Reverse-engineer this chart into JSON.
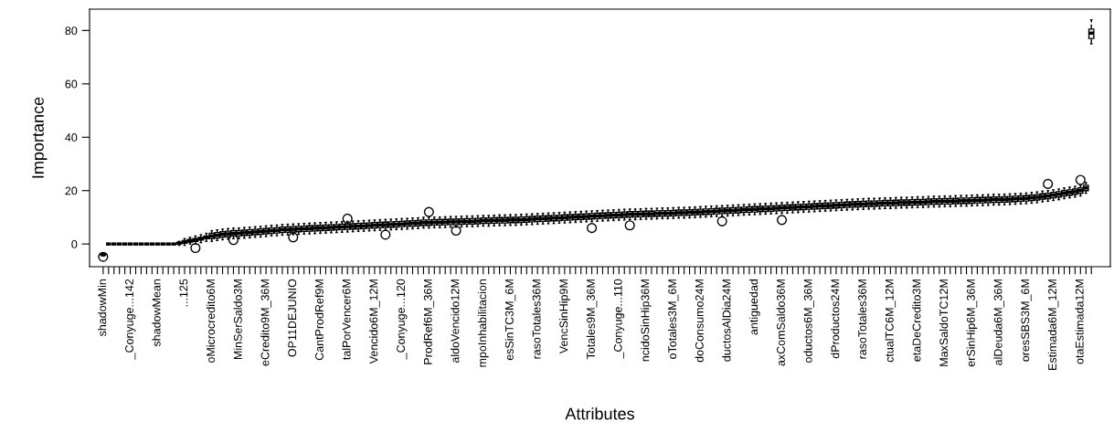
{
  "chart_data": {
    "type": "box",
    "xlabel": "Attributes",
    "ylabel": "Importance",
    "ylim": [
      -8.5,
      88
    ],
    "yticks": [
      0,
      20,
      40,
      60,
      80
    ],
    "grid": false,
    "legend": false,
    "categories": [
      "shadowMin",
      null,
      null,
      null,
      null,
      "_Conyuge...142",
      null,
      null,
      null,
      null,
      "shadowMean",
      null,
      null,
      null,
      null,
      "...125",
      null,
      null,
      null,
      null,
      "oMicrocredito6M",
      null,
      null,
      null,
      null,
      "MinSerSaldo3M",
      null,
      null,
      null,
      null,
      "eCredito9M_36M",
      null,
      null,
      null,
      null,
      "OP11DEJUNIO",
      null,
      null,
      null,
      null,
      "CantProdRef9M",
      null,
      null,
      null,
      null,
      "talPorVencer6M",
      null,
      null,
      null,
      null,
      "Vencido6M_12M",
      null,
      null,
      null,
      null,
      "_Conyuge...120",
      null,
      null,
      null,
      null,
      "ProdRef6M_36M",
      null,
      null,
      null,
      null,
      "aldoVencido12M",
      null,
      null,
      null,
      null,
      "mpoInhabilitacion",
      null,
      null,
      null,
      null,
      "esSinTC3M_6M",
      null,
      null,
      null,
      null,
      "rasoTotales36M",
      null,
      null,
      null,
      null,
      "VencSinHip9M",
      null,
      null,
      null,
      null,
      "Totales9M_36M",
      null,
      null,
      null,
      null,
      "_Conyuge...110",
      null,
      null,
      null,
      null,
      "ncidoSinHip36M",
      null,
      null,
      null,
      null,
      "oTotales3M_6M",
      null,
      null,
      null,
      null,
      "doConsumo24M",
      null,
      null,
      null,
      null,
      "ductosAlDia24M",
      null,
      null,
      null,
      null,
      "antiguedad",
      null,
      null,
      null,
      null,
      "axComSaldo36M",
      null,
      null,
      null,
      null,
      "oductos6M_36M",
      null,
      null,
      null,
      null,
      "dProductos24M",
      null,
      null,
      null,
      null,
      "rasoTotales36M",
      null,
      null,
      null,
      null,
      "ctualTC6M_12M",
      null,
      null,
      null,
      null,
      "etaDeCredito3M",
      null,
      null,
      null,
      null,
      "MaxSaldoTC12M",
      null,
      null,
      null,
      null,
      "erSinHip6M_36M",
      null,
      null,
      null,
      null,
      "alDeuda6M_36M",
      null,
      null,
      null,
      null,
      "oresSBS3M_6M",
      null,
      null,
      null,
      null,
      "Estimada6M_12M",
      null,
      null,
      null,
      null,
      "otaEstimada12M",
      null,
      null
    ],
    "boxes": [
      {
        "low": -4.5,
        "q1": -4.2,
        "median": -4,
        "q3": -3.8,
        "high": -3.5,
        "outliers": [
          -4.8
        ]
      },
      {
        "low": 0,
        "q1": 0,
        "median": 0,
        "q3": 0,
        "high": 0
      },
      {
        "low": 0,
        "q1": 0,
        "median": 0,
        "q3": 0,
        "high": 0
      },
      {
        "low": 0,
        "q1": 0,
        "median": 0,
        "q3": 0,
        "high": 0
      },
      {
        "low": 0,
        "q1": 0,
        "median": 0,
        "q3": 0,
        "high": 0
      },
      {
        "low": 0,
        "q1": 0,
        "median": 0,
        "q3": 0,
        "high": 0
      },
      {
        "low": 0,
        "q1": 0,
        "median": 0,
        "q3": 0,
        "high": 0
      },
      {
        "low": 0,
        "q1": 0,
        "median": 0,
        "q3": 0,
        "high": 0
      },
      {
        "low": 0,
        "q1": 0,
        "median": 0,
        "q3": 0,
        "high": 0
      },
      {
        "low": 0,
        "q1": 0,
        "median": 0,
        "q3": 0,
        "high": 0
      },
      {
        "low": 0,
        "q1": 0,
        "median": 0,
        "q3": 0,
        "high": 0
      },
      {
        "low": 0,
        "q1": 0,
        "median": 0,
        "q3": 0,
        "high": 0
      },
      {
        "low": 0,
        "q1": 0,
        "median": 0,
        "q3": 0,
        "high": 0
      },
      {
        "low": 0,
        "q1": 0,
        "median": 0,
        "q3": 0,
        "high": 0
      },
      {
        "low": -0.5,
        "q1": 0,
        "median": 0.3,
        "q3": 0.6,
        "high": 1
      },
      {
        "low": -0.5,
        "q1": 0.3,
        "median": 0.8,
        "q3": 1.3,
        "high": 2
      },
      {
        "low": 0,
        "q1": 0.7,
        "median": 1.2,
        "q3": 1.7,
        "high": 2.5
      },
      {
        "low": 0,
        "q1": 1,
        "median": 1.5,
        "q3": 2,
        "high": 3,
        "outliers": [
          -1.5
        ]
      },
      {
        "low": 0.5,
        "q1": 1.5,
        "median": 2,
        "q3": 2.5,
        "high": 3.5
      },
      {
        "low": 1,
        "q1": 2,
        "median": 2.5,
        "q3": 3,
        "high": 4
      },
      {
        "low": 1,
        "q1": 2,
        "median": 3,
        "q3": 4,
        "high": 5
      },
      {
        "low": 1.3,
        "q1": 2.3,
        "median": 3.3,
        "q3": 4.3,
        "high": 5.3
      },
      {
        "low": 1.6,
        "q1": 2.6,
        "median": 3.6,
        "q3": 4.6,
        "high": 5.6
      },
      {
        "low": 1.8,
        "q1": 2.8,
        "median": 3.8,
        "q3": 4.8,
        "high": 5.8
      },
      {
        "low": 2,
        "q1": 3,
        "median": 4,
        "q3": 5,
        "high": 6,
        "outliers": [
          1.5
        ]
      },
      {
        "low": 2,
        "q1": 3,
        "median": 4,
        "q3": 5,
        "high": 6
      },
      {
        "low": 2.2,
        "q1": 3.2,
        "median": 4.2,
        "q3": 5.2,
        "high": 6.2
      },
      {
        "low": 2.3,
        "q1": 3.3,
        "median": 4.3,
        "q3": 5.3,
        "high": 6.3
      },
      {
        "low": 2.5,
        "q1": 3.5,
        "median": 4.5,
        "q3": 5.5,
        "high": 6.5
      },
      {
        "low": 2.6,
        "q1": 3.6,
        "median": 4.6,
        "q3": 5.6,
        "high": 6.6
      },
      {
        "low": 2.8,
        "q1": 3.8,
        "median": 4.8,
        "q3": 5.8,
        "high": 6.8
      },
      {
        "low": 3,
        "q1": 4,
        "median": 5,
        "q3": 6,
        "high": 7
      },
      {
        "low": 3.1,
        "q1": 4.1,
        "median": 5.1,
        "q3": 6.1,
        "high": 7.1
      },
      {
        "low": 3.3,
        "q1": 4.3,
        "median": 5.3,
        "q3": 6.3,
        "high": 7.3
      },
      {
        "low": 3.4,
        "q1": 4.4,
        "median": 5.4,
        "q3": 6.4,
        "high": 7.4
      },
      {
        "low": 3.5,
        "q1": 4.5,
        "median": 5.5,
        "q3": 6.5,
        "high": 7.5,
        "outliers": [
          2.5
        ]
      },
      {
        "low": 3.6,
        "q1": 4.6,
        "median": 5.6,
        "q3": 6.6,
        "high": 7.6
      },
      {
        "low": 3.7,
        "q1": 4.7,
        "median": 5.7,
        "q3": 6.7,
        "high": 7.7
      },
      {
        "low": 3.8,
        "q1": 4.8,
        "median": 5.8,
        "q3": 6.8,
        "high": 7.8
      },
      {
        "low": 3.9,
        "q1": 4.9,
        "median": 5.9,
        "q3": 6.9,
        "high": 7.9
      },
      {
        "low": 4,
        "q1": 5,
        "median": 6,
        "q3": 7,
        "high": 8
      },
      {
        "low": 4.1,
        "q1": 5.1,
        "median": 6.1,
        "q3": 7.1,
        "high": 8.1
      },
      {
        "low": 4.2,
        "q1": 5.2,
        "median": 6.2,
        "q3": 7.2,
        "high": 8.2
      },
      {
        "low": 4.3,
        "q1": 5.3,
        "median": 6.3,
        "q3": 7.3,
        "high": 8.3
      },
      {
        "low": 4.4,
        "q1": 5.4,
        "median": 6.4,
        "q3": 7.4,
        "high": 8.4
      },
      {
        "low": 4.5,
        "q1": 5.5,
        "median": 6.5,
        "q3": 7.5,
        "high": 8.5,
        "outliers": [
          9.5
        ]
      },
      {
        "low": 4.6,
        "q1": 5.6,
        "median": 6.6,
        "q3": 7.6,
        "high": 8.6
      },
      {
        "low": 4.7,
        "q1": 5.7,
        "median": 6.7,
        "q3": 7.7,
        "high": 8.7
      },
      {
        "low": 4.8,
        "q1": 5.8,
        "median": 6.8,
        "q3": 7.8,
        "high": 8.8
      },
      {
        "low": 4.9,
        "q1": 5.9,
        "median": 6.9,
        "q3": 7.9,
        "high": 8.9
      },
      {
        "low": 5,
        "q1": 6,
        "median": 7,
        "q3": 8,
        "high": 9
      },
      {
        "low": 5.1,
        "q1": 6.1,
        "median": 7.1,
        "q3": 8.1,
        "high": 9.1
      },
      {
        "low": 5.2,
        "q1": 6.2,
        "median": 7.2,
        "q3": 8.2,
        "high": 9.2,
        "outliers": [
          3.5
        ]
      },
      {
        "low": 5.3,
        "q1": 6.3,
        "median": 7.3,
        "q3": 8.3,
        "high": 9.3
      },
      {
        "low": 5.4,
        "q1": 6.4,
        "median": 7.4,
        "q3": 8.4,
        "high": 9.4
      },
      {
        "low": 5.5,
        "q1": 6.5,
        "median": 7.5,
        "q3": 8.5,
        "high": 9.5
      },
      {
        "low": 5.6,
        "q1": 6.6,
        "median": 7.6,
        "q3": 8.6,
        "high": 9.6
      },
      {
        "low": 5.7,
        "q1": 6.7,
        "median": 7.7,
        "q3": 8.7,
        "high": 9.7
      },
      {
        "low": 5.8,
        "q1": 6.8,
        "median": 7.8,
        "q3": 8.8,
        "high": 9.8
      },
      {
        "low": 6,
        "q1": 7,
        "median": 8,
        "q3": 9,
        "high": 10
      },
      {
        "low": 6,
        "q1": 7,
        "median": 8,
        "q3": 9,
        "high": 10,
        "outliers": [
          12
        ]
      },
      {
        "low": 6.1,
        "q1": 7.1,
        "median": 8.1,
        "q3": 9.1,
        "high": 10.1
      },
      {
        "low": 6.1,
        "q1": 7.1,
        "median": 8.1,
        "q3": 9.1,
        "high": 10.1
      },
      {
        "low": 6.2,
        "q1": 7.2,
        "median": 8.2,
        "q3": 9.2,
        "high": 10.2
      },
      {
        "low": 6.3,
        "q1": 7.3,
        "median": 8.3,
        "q3": 9.3,
        "high": 10.3
      },
      {
        "low": 6.3,
        "q1": 7.3,
        "median": 8.3,
        "q3": 9.3,
        "high": 10.3,
        "outliers": [
          5
        ]
      },
      {
        "low": 6.4,
        "q1": 7.4,
        "median": 8.4,
        "q3": 9.4,
        "high": 10.4
      },
      {
        "low": 6.5,
        "q1": 7.5,
        "median": 8.5,
        "q3": 9.5,
        "high": 10.5
      },
      {
        "low": 6.5,
        "q1": 7.5,
        "median": 8.5,
        "q3": 9.5,
        "high": 10.5
      },
      {
        "low": 6.6,
        "q1": 7.6,
        "median": 8.6,
        "q3": 9.6,
        "high": 10.6
      },
      {
        "low": 6.7,
        "q1": 7.7,
        "median": 8.7,
        "q3": 9.7,
        "high": 10.7
      },
      {
        "low": 6.7,
        "q1": 7.7,
        "median": 8.7,
        "q3": 9.7,
        "high": 10.7
      },
      {
        "low": 6.8,
        "q1": 7.8,
        "median": 8.8,
        "q3": 9.8,
        "high": 10.8
      },
      {
        "low": 6.9,
        "q1": 7.9,
        "median": 8.9,
        "q3": 9.9,
        "high": 10.9
      },
      {
        "low": 6.9,
        "q1": 7.9,
        "median": 8.9,
        "q3": 9.9,
        "high": 10.9
      },
      {
        "low": 7,
        "q1": 8,
        "median": 9,
        "q3": 10,
        "high": 11
      },
      {
        "low": 7,
        "q1": 8,
        "median": 9,
        "q3": 10,
        "high": 11
      },
      {
        "low": 7.1,
        "q1": 8.1,
        "median": 9.1,
        "q3": 10.1,
        "high": 11.1
      },
      {
        "low": 7.2,
        "q1": 8.2,
        "median": 9.2,
        "q3": 10.2,
        "high": 11.2
      },
      {
        "low": 7.3,
        "q1": 8.3,
        "median": 9.3,
        "q3": 10.3,
        "high": 11.3
      },
      {
        "low": 7.4,
        "q1": 8.4,
        "median": 9.4,
        "q3": 10.4,
        "high": 11.4
      },
      {
        "low": 7.5,
        "q1": 8.5,
        "median": 9.5,
        "q3": 10.5,
        "high": 11.5
      },
      {
        "low": 7.6,
        "q1": 8.6,
        "median": 9.6,
        "q3": 10.6,
        "high": 11.6
      },
      {
        "low": 7.7,
        "q1": 8.7,
        "median": 9.7,
        "q3": 10.7,
        "high": 11.7
      },
      {
        "low": 7.8,
        "q1": 8.8,
        "median": 9.8,
        "q3": 10.8,
        "high": 11.8
      },
      {
        "low": 7.9,
        "q1": 8.9,
        "median": 9.9,
        "q3": 10.9,
        "high": 11.9
      },
      {
        "low": 8,
        "q1": 9,
        "median": 10,
        "q3": 11,
        "high": 12
      },
      {
        "low": 8.1,
        "q1": 9.1,
        "median": 10.1,
        "q3": 11.1,
        "high": 12.1
      },
      {
        "low": 8.2,
        "q1": 9.2,
        "median": 10.2,
        "q3": 11.2,
        "high": 12.2
      },
      {
        "low": 8.3,
        "q1": 9.3,
        "median": 10.3,
        "q3": 11.3,
        "high": 12.3
      },
      {
        "low": 8.4,
        "q1": 9.4,
        "median": 10.4,
        "q3": 11.4,
        "high": 12.4,
        "outliers": [
          6
        ]
      },
      {
        "low": 8.5,
        "q1": 9.5,
        "median": 10.5,
        "q3": 11.5,
        "high": 12.5
      },
      {
        "low": 8.6,
        "q1": 9.6,
        "median": 10.6,
        "q3": 11.6,
        "high": 12.6
      },
      {
        "low": 8.7,
        "q1": 9.7,
        "median": 10.7,
        "q3": 11.7,
        "high": 12.7
      },
      {
        "low": 8.8,
        "q1": 9.8,
        "median": 10.8,
        "q3": 11.8,
        "high": 12.8
      },
      {
        "low": 8.9,
        "q1": 9.9,
        "median": 10.9,
        "q3": 11.9,
        "high": 12.9
      },
      {
        "low": 9,
        "q1": 10,
        "median": 11,
        "q3": 12,
        "high": 13
      },
      {
        "low": 9.1,
        "q1": 10.1,
        "median": 11.1,
        "q3": 12.1,
        "high": 13.1,
        "outliers": [
          7
        ]
      },
      {
        "low": 9.1,
        "q1": 10.1,
        "median": 11.1,
        "q3": 12.1,
        "high": 13.1
      },
      {
        "low": 9.2,
        "q1": 10.2,
        "median": 11.2,
        "q3": 12.2,
        "high": 13.2
      },
      {
        "low": 9.3,
        "q1": 10.3,
        "median": 11.3,
        "q3": 12.3,
        "high": 13.3
      },
      {
        "low": 9.3,
        "q1": 10.3,
        "median": 11.3,
        "q3": 12.3,
        "high": 13.3
      },
      {
        "low": 9.4,
        "q1": 10.4,
        "median": 11.4,
        "q3": 12.4,
        "high": 13.4
      },
      {
        "low": 9.5,
        "q1": 10.5,
        "median": 11.5,
        "q3": 12.5,
        "high": 13.5
      },
      {
        "low": 9.5,
        "q1": 10.5,
        "median": 11.5,
        "q3": 12.5,
        "high": 13.5
      },
      {
        "low": 9.6,
        "q1": 10.6,
        "median": 11.6,
        "q3": 12.6,
        "high": 13.6
      },
      {
        "low": 9.7,
        "q1": 10.7,
        "median": 11.7,
        "q3": 12.7,
        "high": 13.7
      },
      {
        "low": 9.7,
        "q1": 10.7,
        "median": 11.7,
        "q3": 12.7,
        "high": 13.7
      },
      {
        "low": 9.8,
        "q1": 10.8,
        "median": 11.8,
        "q3": 12.8,
        "high": 13.8
      },
      {
        "low": 9.9,
        "q1": 10.9,
        "median": 11.9,
        "q3": 12.9,
        "high": 13.9
      },
      {
        "low": 10,
        "q1": 11,
        "median": 12,
        "q3": 13,
        "high": 14
      },
      {
        "low": 10.1,
        "q1": 11.1,
        "median": 12.1,
        "q3": 13.1,
        "high": 14.1
      },
      {
        "low": 10.2,
        "q1": 11.2,
        "median": 12.2,
        "q3": 13.2,
        "high": 14.2
      },
      {
        "low": 10.3,
        "q1": 11.3,
        "median": 12.3,
        "q3": 13.3,
        "high": 14.3
      },
      {
        "low": 10.4,
        "q1": 11.4,
        "median": 12.4,
        "q3": 13.4,
        "high": 14.4,
        "outliers": [
          8.5
        ]
      },
      {
        "low": 10.5,
        "q1": 11.5,
        "median": 12.5,
        "q3": 13.5,
        "high": 14.5
      },
      {
        "low": 10.6,
        "q1": 11.6,
        "median": 12.6,
        "q3": 13.6,
        "high": 14.6
      },
      {
        "low": 10.7,
        "q1": 11.7,
        "median": 12.7,
        "q3": 13.7,
        "high": 14.7
      },
      {
        "low": 10.8,
        "q1": 11.8,
        "median": 12.8,
        "q3": 13.8,
        "high": 14.8
      },
      {
        "low": 10.9,
        "q1": 11.9,
        "median": 12.9,
        "q3": 13.9,
        "high": 14.9
      },
      {
        "low": 11,
        "q1": 12,
        "median": 13,
        "q3": 14,
        "high": 15
      },
      {
        "low": 11.1,
        "q1": 12.1,
        "median": 13.1,
        "q3": 14.1,
        "high": 15.1
      },
      {
        "low": 11.2,
        "q1": 12.2,
        "median": 13.2,
        "q3": 14.2,
        "high": 15.2
      },
      {
        "low": 11.3,
        "q1": 12.3,
        "median": 13.3,
        "q3": 14.3,
        "high": 15.3
      },
      {
        "low": 11.4,
        "q1": 12.4,
        "median": 13.4,
        "q3": 14.4,
        "high": 15.4
      },
      {
        "low": 11.5,
        "q1": 12.5,
        "median": 13.5,
        "q3": 14.5,
        "high": 15.5,
        "outliers": [
          9
        ]
      },
      {
        "low": 11.6,
        "q1": 12.6,
        "median": 13.6,
        "q3": 14.6,
        "high": 15.6
      },
      {
        "low": 11.7,
        "q1": 12.7,
        "median": 13.7,
        "q3": 14.7,
        "high": 15.7
      },
      {
        "low": 11.8,
        "q1": 12.8,
        "median": 13.8,
        "q3": 14.8,
        "high": 15.8
      },
      {
        "low": 11.9,
        "q1": 12.9,
        "median": 13.9,
        "q3": 14.9,
        "high": 15.9
      },
      {
        "low": 12,
        "q1": 13,
        "median": 14,
        "q3": 15,
        "high": 16
      },
      {
        "low": 12.1,
        "q1": 13.1,
        "median": 14.1,
        "q3": 15.1,
        "high": 16.1
      },
      {
        "low": 12.2,
        "q1": 13.2,
        "median": 14.2,
        "q3": 15.2,
        "high": 16.2
      },
      {
        "low": 12.3,
        "q1": 13.3,
        "median": 14.3,
        "q3": 15.3,
        "high": 16.3
      },
      {
        "low": 12.4,
        "q1": 13.4,
        "median": 14.4,
        "q3": 15.4,
        "high": 16.4
      },
      {
        "low": 12.5,
        "q1": 13.5,
        "median": 14.5,
        "q3": 15.5,
        "high": 16.5
      },
      {
        "low": 12.6,
        "q1": 13.6,
        "median": 14.6,
        "q3": 15.6,
        "high": 16.6
      },
      {
        "low": 12.7,
        "q1": 13.7,
        "median": 14.7,
        "q3": 15.7,
        "high": 16.7
      },
      {
        "low": 12.8,
        "q1": 13.8,
        "median": 14.8,
        "q3": 15.8,
        "high": 16.8
      },
      {
        "low": 12.9,
        "q1": 13.9,
        "median": 14.9,
        "q3": 15.9,
        "high": 16.9
      },
      {
        "low": 13,
        "q1": 14,
        "median": 15,
        "q3": 16,
        "high": 17
      },
      {
        "low": 13.1,
        "q1": 14.1,
        "median": 15.1,
        "q3": 16.1,
        "high": 17.1
      },
      {
        "low": 13.1,
        "q1": 14.1,
        "median": 15.1,
        "q3": 16.1,
        "high": 17.1
      },
      {
        "low": 13.2,
        "q1": 14.2,
        "median": 15.2,
        "q3": 16.2,
        "high": 17.2
      },
      {
        "low": 13.3,
        "q1": 14.3,
        "median": 15.3,
        "q3": 16.3,
        "high": 17.3
      },
      {
        "low": 13.3,
        "q1": 14.3,
        "median": 15.3,
        "q3": 16.3,
        "high": 17.3
      },
      {
        "low": 13.4,
        "q1": 14.4,
        "median": 15.4,
        "q3": 16.4,
        "high": 17.4
      },
      {
        "low": 13.5,
        "q1": 14.5,
        "median": 15.5,
        "q3": 16.5,
        "high": 17.5
      },
      {
        "low": 13.5,
        "q1": 14.5,
        "median": 15.5,
        "q3": 16.5,
        "high": 17.5
      },
      {
        "low": 13.6,
        "q1": 14.6,
        "median": 15.6,
        "q3": 16.6,
        "high": 17.6
      },
      {
        "low": 13.7,
        "q1": 14.7,
        "median": 15.7,
        "q3": 16.7,
        "high": 17.7
      },
      {
        "low": 13.7,
        "q1": 14.7,
        "median": 15.7,
        "q3": 16.7,
        "high": 17.7
      },
      {
        "low": 13.8,
        "q1": 14.8,
        "median": 15.8,
        "q3": 16.8,
        "high": 17.8
      },
      {
        "low": 13.9,
        "q1": 14.9,
        "median": 15.9,
        "q3": 16.9,
        "high": 17.9
      },
      {
        "low": 13.9,
        "q1": 14.9,
        "median": 15.9,
        "q3": 16.9,
        "high": 17.9
      },
      {
        "low": 14,
        "q1": 15,
        "median": 16,
        "q3": 17,
        "high": 18
      },
      {
        "low": 14,
        "q1": 15,
        "median": 16,
        "q3": 17,
        "high": 18
      },
      {
        "low": 14.1,
        "q1": 15.1,
        "median": 16.1,
        "q3": 17.1,
        "high": 18.1
      },
      {
        "low": 14.2,
        "q1": 15.2,
        "median": 16.2,
        "q3": 17.2,
        "high": 18.2
      },
      {
        "low": 14.2,
        "q1": 15.2,
        "median": 16.2,
        "q3": 17.2,
        "high": 18.2
      },
      {
        "low": 14.3,
        "q1": 15.3,
        "median": 16.3,
        "q3": 17.3,
        "high": 18.3
      },
      {
        "low": 14.4,
        "q1": 15.4,
        "median": 16.4,
        "q3": 17.4,
        "high": 18.4
      },
      {
        "low": 14.4,
        "q1": 15.4,
        "median": 16.4,
        "q3": 17.4,
        "high": 18.4
      },
      {
        "low": 14.5,
        "q1": 15.5,
        "median": 16.5,
        "q3": 17.5,
        "high": 18.5
      },
      {
        "low": 14.6,
        "q1": 15.6,
        "median": 16.6,
        "q3": 17.6,
        "high": 18.6
      },
      {
        "low": 14.6,
        "q1": 15.6,
        "median": 16.6,
        "q3": 17.6,
        "high": 18.6
      },
      {
        "low": 14.7,
        "q1": 15.7,
        "median": 16.7,
        "q3": 17.7,
        "high": 18.7
      },
      {
        "low": 14.8,
        "q1": 15.8,
        "median": 16.8,
        "q3": 17.8,
        "high": 18.8
      },
      {
        "low": 14.9,
        "q1": 15.9,
        "median": 16.9,
        "q3": 17.9,
        "high": 18.9
      },
      {
        "low": 15,
        "q1": 16,
        "median": 17,
        "q3": 18,
        "high": 19
      },
      {
        "low": 15.1,
        "q1": 16.1,
        "median": 17.1,
        "q3": 18.1,
        "high": 19.1
      },
      {
        "low": 15.3,
        "q1": 16.3,
        "median": 17.3,
        "q3": 18.3,
        "high": 19.3
      },
      {
        "low": 15.5,
        "q1": 16.5,
        "median": 17.5,
        "q3": 18.5,
        "high": 19.5
      },
      {
        "low": 15.8,
        "q1": 16.8,
        "median": 17.8,
        "q3": 18.8,
        "high": 19.8
      },
      {
        "low": 16,
        "q1": 17,
        "median": 18,
        "q3": 19,
        "high": 20,
        "outliers": [
          22.5
        ]
      },
      {
        "low": 16.3,
        "q1": 17.3,
        "median": 18.3,
        "q3": 19.3,
        "high": 20.3
      },
      {
        "low": 16.6,
        "q1": 17.6,
        "median": 18.6,
        "q3": 19.6,
        "high": 20.6
      },
      {
        "low": 17,
        "q1": 18,
        "median": 19,
        "q3": 20,
        "high": 21
      },
      {
        "low": 17.3,
        "q1": 18.3,
        "median": 19.3,
        "q3": 20.3,
        "high": 21.3
      },
      {
        "low": 17.6,
        "q1": 18.6,
        "median": 19.6,
        "q3": 20.6,
        "high": 21.6
      },
      {
        "low": 18,
        "q1": 19,
        "median": 20,
        "q3": 21,
        "high": 22,
        "outliers": [
          24
        ]
      },
      {
        "low": 19,
        "q1": 20,
        "median": 21,
        "q3": 22,
        "high": 23
      },
      {
        "low": 75,
        "q1": 77,
        "median": 79,
        "q3": 80.5,
        "high": 84
      }
    ]
  }
}
